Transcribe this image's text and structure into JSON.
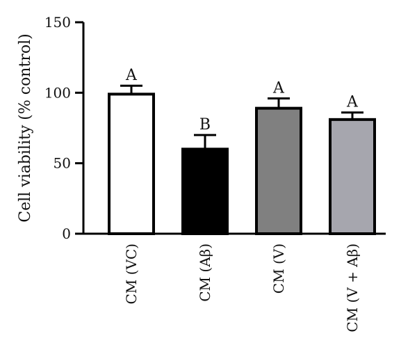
{
  "chart_data": {
    "type": "bar",
    "ylabel": "Cell viability (% control)",
    "ylim": [
      0,
      150
    ],
    "yticks": [
      0,
      50,
      100,
      150
    ],
    "categories": [
      "CM (VC)",
      "CM (Aβ)",
      "CM (V)",
      "CM (V + Aβ)"
    ],
    "values": [
      99,
      60,
      89,
      81
    ],
    "errors": [
      6,
      10,
      7,
      5
    ],
    "significance": [
      "A",
      "B",
      "A",
      "A"
    ],
    "bar_colors": [
      "#ffffff",
      "#000000",
      "#808080",
      "#a6a6ae"
    ],
    "edge_color": "#000000",
    "grid": false,
    "legend": "none"
  }
}
